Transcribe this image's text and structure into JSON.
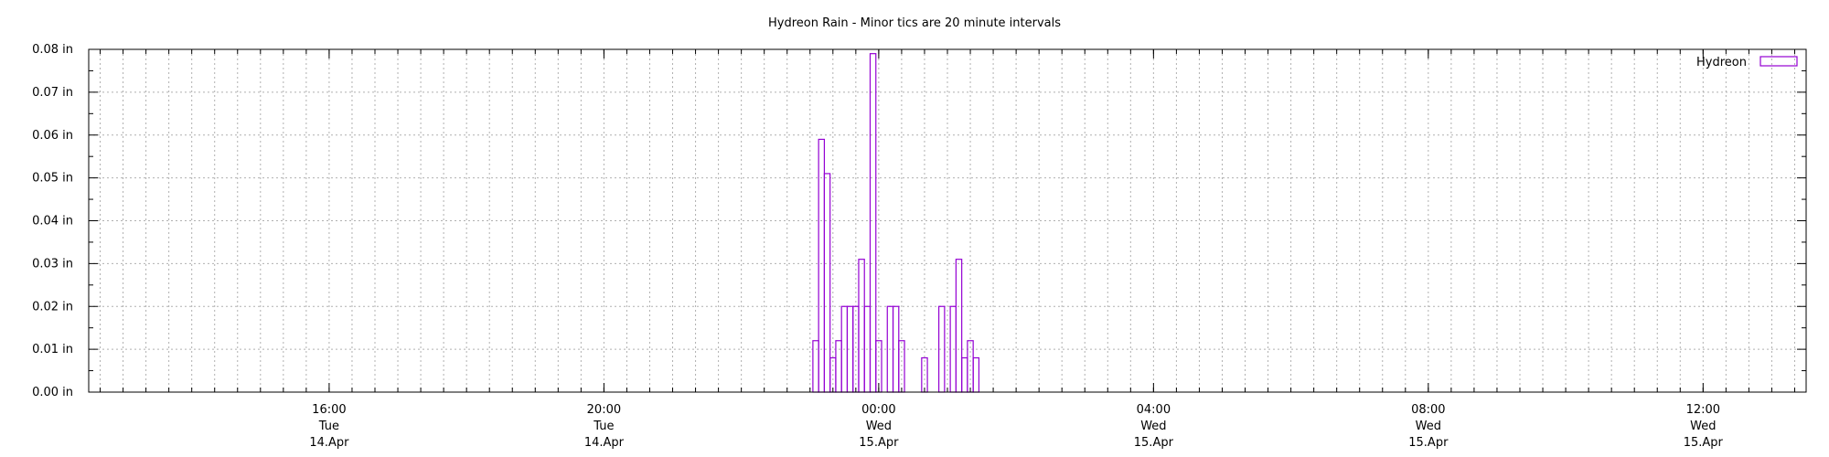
{
  "chart_data": {
    "type": "bar",
    "title": "Hydreon Rain - Minor tics are 20 minute intervals",
    "xlabel": "",
    "ylabel": "",
    "legend": {
      "label": "Hydreon",
      "placement": "top-right"
    },
    "series_color": "#9400d3",
    "grid": true,
    "x_axis": {
      "type": "time",
      "range": [
        "2020-04-14T12:30",
        "2020-04-15T13:30"
      ],
      "major_ticks": [
        {
          "time": "2020-04-14T16:00",
          "labels": [
            "16:00",
            "Tue",
            "14.Apr"
          ]
        },
        {
          "time": "2020-04-14T20:00",
          "labels": [
            "20:00",
            "Tue",
            "14.Apr"
          ]
        },
        {
          "time": "2020-04-15T00:00",
          "labels": [
            "00:00",
            "Wed",
            "15.Apr"
          ]
        },
        {
          "time": "2020-04-15T04:00",
          "labels": [
            "04:00",
            "Wed",
            "15.Apr"
          ]
        },
        {
          "time": "2020-04-15T08:00",
          "labels": [
            "08:00",
            "Wed",
            "15.Apr"
          ]
        },
        {
          "time": "2020-04-15T12:00",
          "labels": [
            "12:00",
            "Wed",
            "15.Apr"
          ]
        }
      ],
      "minor_tick_minutes": 20
    },
    "y_axis": {
      "unit": "in",
      "ylim": [
        0,
        0.08
      ],
      "ticks": [
        0.0,
        0.01,
        0.02,
        0.03,
        0.04,
        0.05,
        0.06,
        0.07,
        0.08
      ],
      "tick_labels": [
        "0.00 in",
        "0.01 in",
        "0.02 in",
        "0.03 in",
        "0.04 in",
        "0.05 in",
        "0.06 in",
        "0.07 in",
        "0.08 in"
      ]
    },
    "bar_width_minutes": 5,
    "bars": [
      {
        "time": "2020-04-14T23:05",
        "value": 0.012
      },
      {
        "time": "2020-04-14T23:10",
        "value": 0.059
      },
      {
        "time": "2020-04-14T23:15",
        "value": 0.051
      },
      {
        "time": "2020-04-14T23:20",
        "value": 0.008
      },
      {
        "time": "2020-04-14T23:25",
        "value": 0.012
      },
      {
        "time": "2020-04-14T23:30",
        "value": 0.02
      },
      {
        "time": "2020-04-14T23:35",
        "value": 0.02
      },
      {
        "time": "2020-04-14T23:40",
        "value": 0.02
      },
      {
        "time": "2020-04-14T23:45",
        "value": 0.031
      },
      {
        "time": "2020-04-14T23:50",
        "value": 0.02
      },
      {
        "time": "2020-04-14T23:55",
        "value": 0.079
      },
      {
        "time": "2020-04-15T00:00",
        "value": 0.012
      },
      {
        "time": "2020-04-15T00:10",
        "value": 0.02
      },
      {
        "time": "2020-04-15T00:15",
        "value": 0.02
      },
      {
        "time": "2020-04-15T00:20",
        "value": 0.012
      },
      {
        "time": "2020-04-15T00:40",
        "value": 0.008
      },
      {
        "time": "2020-04-15T00:55",
        "value": 0.02
      },
      {
        "time": "2020-04-15T01:05",
        "value": 0.02
      },
      {
        "time": "2020-04-15T01:10",
        "value": 0.031
      },
      {
        "time": "2020-04-15T01:15",
        "value": 0.008
      },
      {
        "time": "2020-04-15T01:20",
        "value": 0.012
      },
      {
        "time": "2020-04-15T01:25",
        "value": 0.008
      }
    ]
  }
}
